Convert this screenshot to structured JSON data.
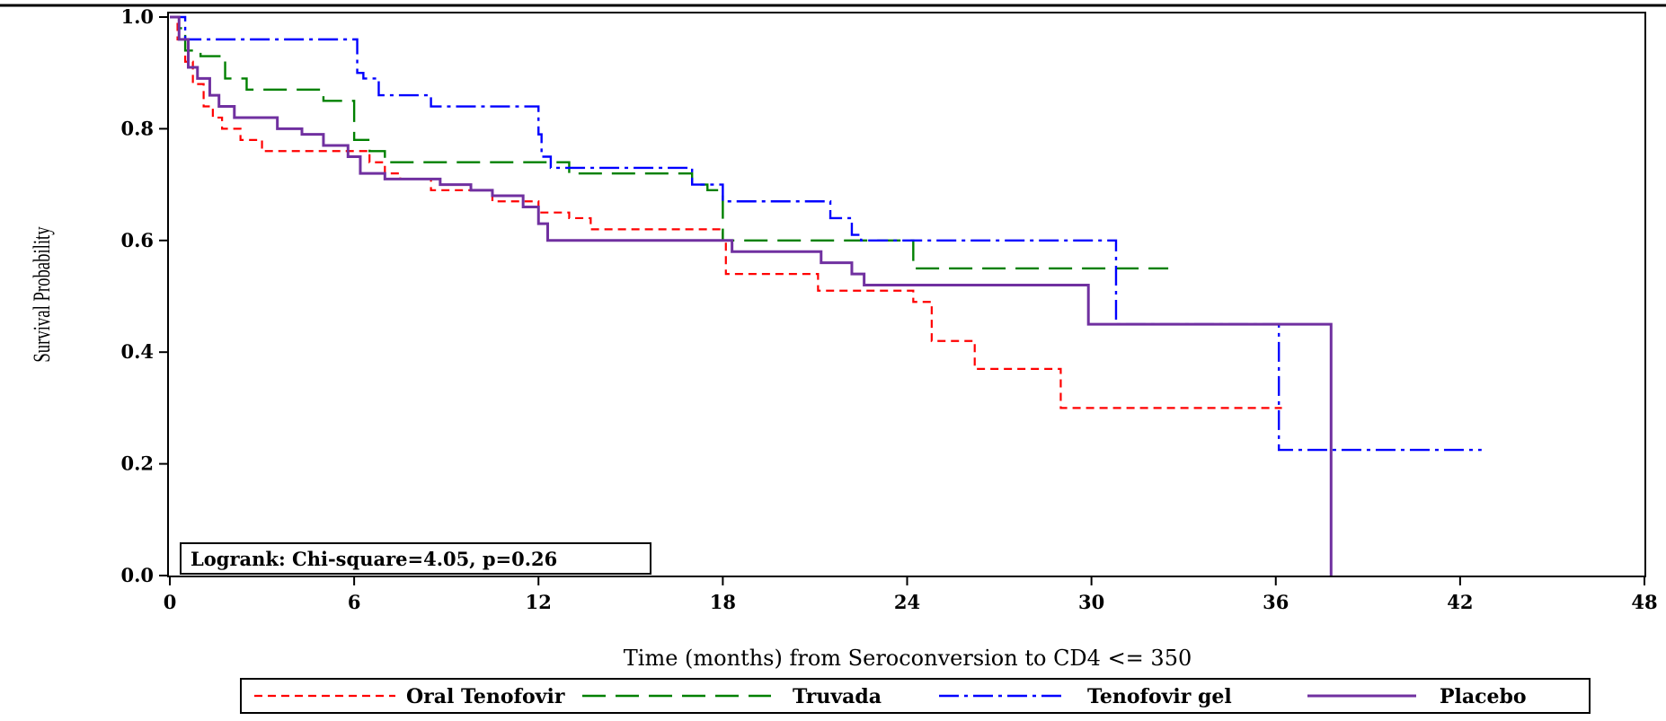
{
  "chart_data": {
    "type": "line",
    "subtype": "kaplan-meier step curves",
    "xlabel": "Time (months) from Seroconversion to CD4 <= 350",
    "ylabel": "Survival Probability",
    "xlim": [
      0,
      48
    ],
    "ylim": [
      0,
      1.0
    ],
    "x_ticks": [
      "0",
      "6",
      "12",
      "18",
      "24",
      "30",
      "36",
      "42",
      "48"
    ],
    "y_ticks": [
      "0.0",
      "0.2",
      "0.4",
      "0.6",
      "0.8",
      "1.0"
    ],
    "grid": false,
    "legend_position": "bottom",
    "annotation": "Logrank: Chi-square=4.05, p=0.26",
    "series": [
      {
        "name": "Oral Tenofovir",
        "color": "#ff0000",
        "dash": "short-dash",
        "points": [
          [
            0,
            1.0
          ],
          [
            0.25,
            0.96
          ],
          [
            0.5,
            0.92
          ],
          [
            0.75,
            0.88
          ],
          [
            1.1,
            0.84
          ],
          [
            1.4,
            0.82
          ],
          [
            1.7,
            0.8
          ],
          [
            2.3,
            0.78
          ],
          [
            3.0,
            0.76
          ],
          [
            6.5,
            0.74
          ],
          [
            7.0,
            0.72
          ],
          [
            7.5,
            0.71
          ],
          [
            8.5,
            0.69
          ],
          [
            10.5,
            0.67
          ],
          [
            12.0,
            0.65
          ],
          [
            13.0,
            0.64
          ],
          [
            13.7,
            0.62
          ],
          [
            18.0,
            0.6
          ],
          [
            18.1,
            0.54
          ],
          [
            21.1,
            0.51
          ],
          [
            24.2,
            0.49
          ],
          [
            24.8,
            0.42
          ],
          [
            26.2,
            0.37
          ],
          [
            29.0,
            0.3
          ],
          [
            36.2,
            0.3
          ]
        ]
      },
      {
        "name": "Truvada",
        "color": "#008000",
        "dash": "long-dash",
        "points": [
          [
            0,
            1.0
          ],
          [
            0.3,
            0.98
          ],
          [
            0.5,
            0.94
          ],
          [
            1.0,
            0.93
          ],
          [
            1.8,
            0.89
          ],
          [
            2.5,
            0.87
          ],
          [
            5.0,
            0.85
          ],
          [
            6.0,
            0.78
          ],
          [
            6.5,
            0.76
          ],
          [
            7.0,
            0.74
          ],
          [
            12.2,
            0.74
          ],
          [
            13.0,
            0.72
          ],
          [
            17.0,
            0.7
          ],
          [
            17.5,
            0.69
          ],
          [
            18.0,
            0.6
          ],
          [
            22.5,
            0.6
          ],
          [
            24.2,
            0.55
          ],
          [
            32.5,
            0.55
          ]
        ]
      },
      {
        "name": "Tenofovir gel",
        "color": "#0000ff",
        "dash": "dash-dot",
        "points": [
          [
            0,
            1.0
          ],
          [
            0.5,
            0.96
          ],
          [
            6.1,
            0.9
          ],
          [
            6.3,
            0.89
          ],
          [
            6.8,
            0.86
          ],
          [
            8.5,
            0.84
          ],
          [
            12.0,
            0.79
          ],
          [
            12.1,
            0.75
          ],
          [
            12.4,
            0.73
          ],
          [
            17.0,
            0.7
          ],
          [
            18.0,
            0.67
          ],
          [
            21.5,
            0.64
          ],
          [
            22.2,
            0.61
          ],
          [
            22.5,
            0.6
          ],
          [
            30.8,
            0.45
          ],
          [
            36.1,
            0.225
          ],
          [
            42.7,
            0.225
          ]
        ]
      },
      {
        "name": "Placebo",
        "color": "#7030a0",
        "dash": "solid",
        "points": [
          [
            0,
            1.0
          ],
          [
            0.3,
            0.96
          ],
          [
            0.6,
            0.91
          ],
          [
            0.9,
            0.89
          ],
          [
            1.3,
            0.86
          ],
          [
            1.6,
            0.84
          ],
          [
            2.1,
            0.82
          ],
          [
            3.5,
            0.8
          ],
          [
            4.3,
            0.79
          ],
          [
            5.0,
            0.77
          ],
          [
            5.8,
            0.75
          ],
          [
            6.2,
            0.72
          ],
          [
            7.0,
            0.71
          ],
          [
            8.8,
            0.7
          ],
          [
            9.8,
            0.69
          ],
          [
            10.5,
            0.68
          ],
          [
            11.5,
            0.66
          ],
          [
            12.0,
            0.63
          ],
          [
            12.3,
            0.6
          ],
          [
            18.3,
            0.58
          ],
          [
            21.2,
            0.56
          ],
          [
            22.2,
            0.54
          ],
          [
            22.6,
            0.52
          ],
          [
            29.9,
            0.45
          ],
          [
            37.8,
            0.0
          ]
        ]
      }
    ]
  }
}
